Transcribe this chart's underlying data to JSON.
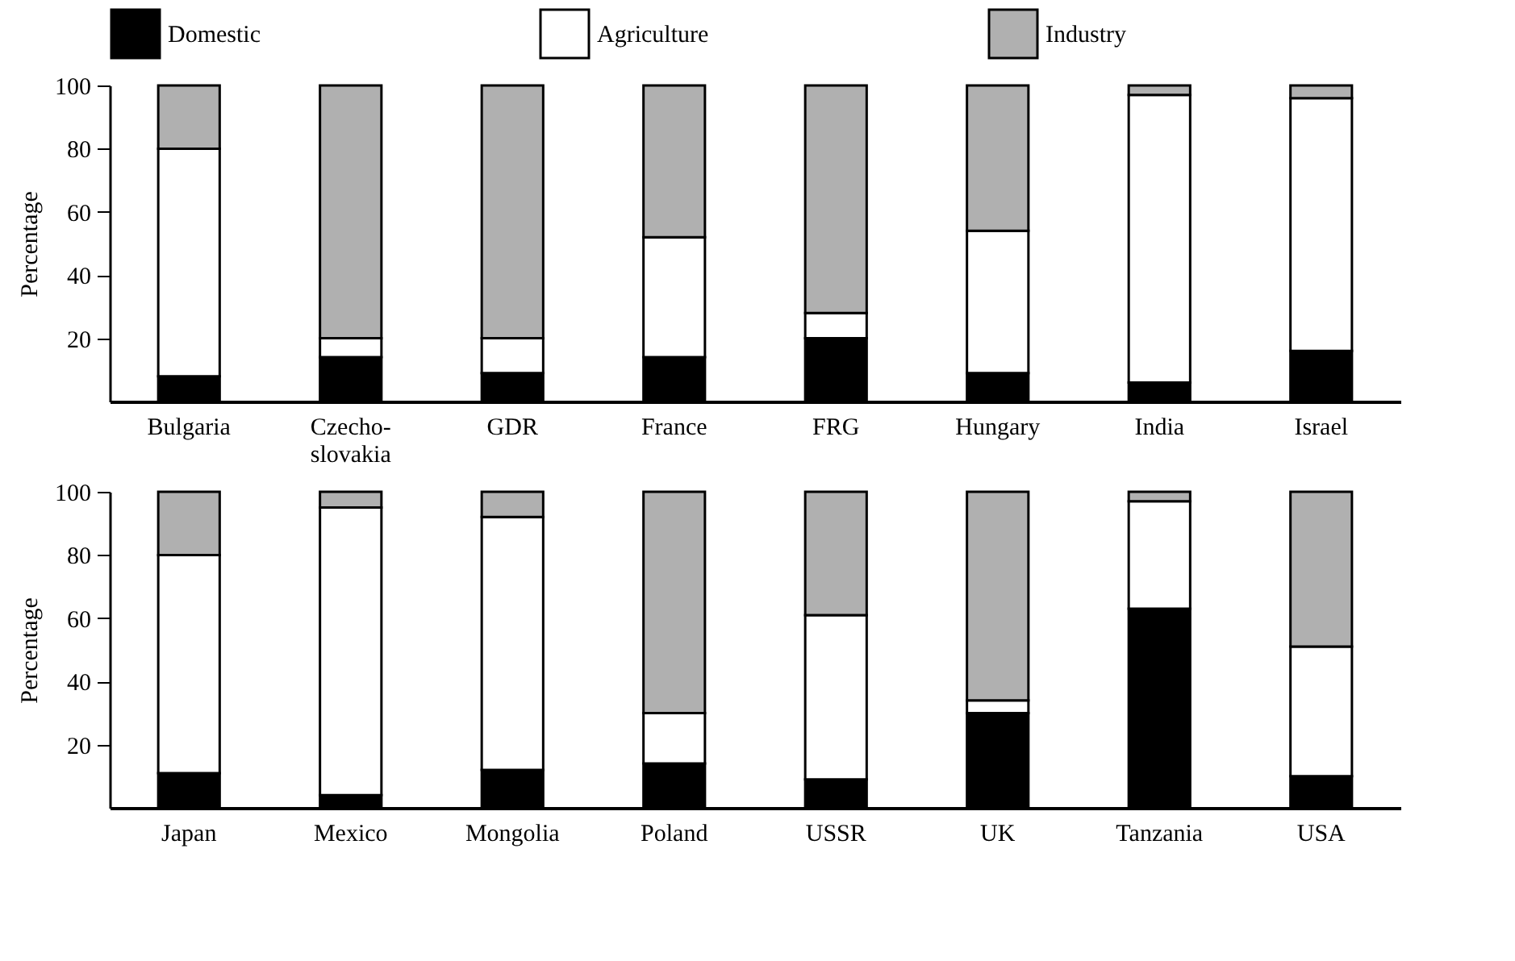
{
  "chart_data": [
    {
      "type": "bar",
      "stacked": true,
      "ylabel": "Percentage",
      "legend": "top",
      "ylim": [
        0,
        100
      ],
      "yticks": [
        20,
        40,
        60,
        80,
        100
      ],
      "categories": [
        "Bulgaria",
        "Czecho-\nslovakia",
        "GDR",
        "France",
        "FRG",
        "Hungary",
        "India",
        "Israel"
      ],
      "series": [
        {
          "name": "Domestic",
          "color": "#000000",
          "values": [
            8,
            14,
            9,
            14,
            20,
            9,
            6,
            16
          ]
        },
        {
          "name": "Agriculture",
          "color": "#ffffff",
          "values": [
            72,
            6,
            11,
            38,
            8,
            45,
            91,
            80
          ]
        },
        {
          "name": "Industry",
          "color": "#b0b0b0",
          "values": [
            20,
            80,
            80,
            48,
            72,
            46,
            3,
            4
          ]
        }
      ]
    },
    {
      "type": "bar",
      "stacked": true,
      "ylabel": "Percentage",
      "ylim": [
        0,
        100
      ],
      "yticks": [
        20,
        40,
        60,
        80,
        100
      ],
      "categories": [
        "Japan",
        "Mexico",
        "Mongolia",
        "Poland",
        "USSR",
        "UK",
        "Tanzania",
        "USA"
      ],
      "series": [
        {
          "color": "#000000",
          "values": [
            11,
            4,
            12,
            14,
            9,
            30,
            63,
            10
          ]
        },
        {
          "color": "#ffffff",
          "values": [
            69,
            91,
            80,
            16,
            52,
            4,
            34,
            41
          ]
        },
        {
          "color": "#b0b0b0",
          "values": [
            20,
            5,
            8,
            70,
            39,
            66,
            3,
            49
          ]
        }
      ]
    }
  ]
}
